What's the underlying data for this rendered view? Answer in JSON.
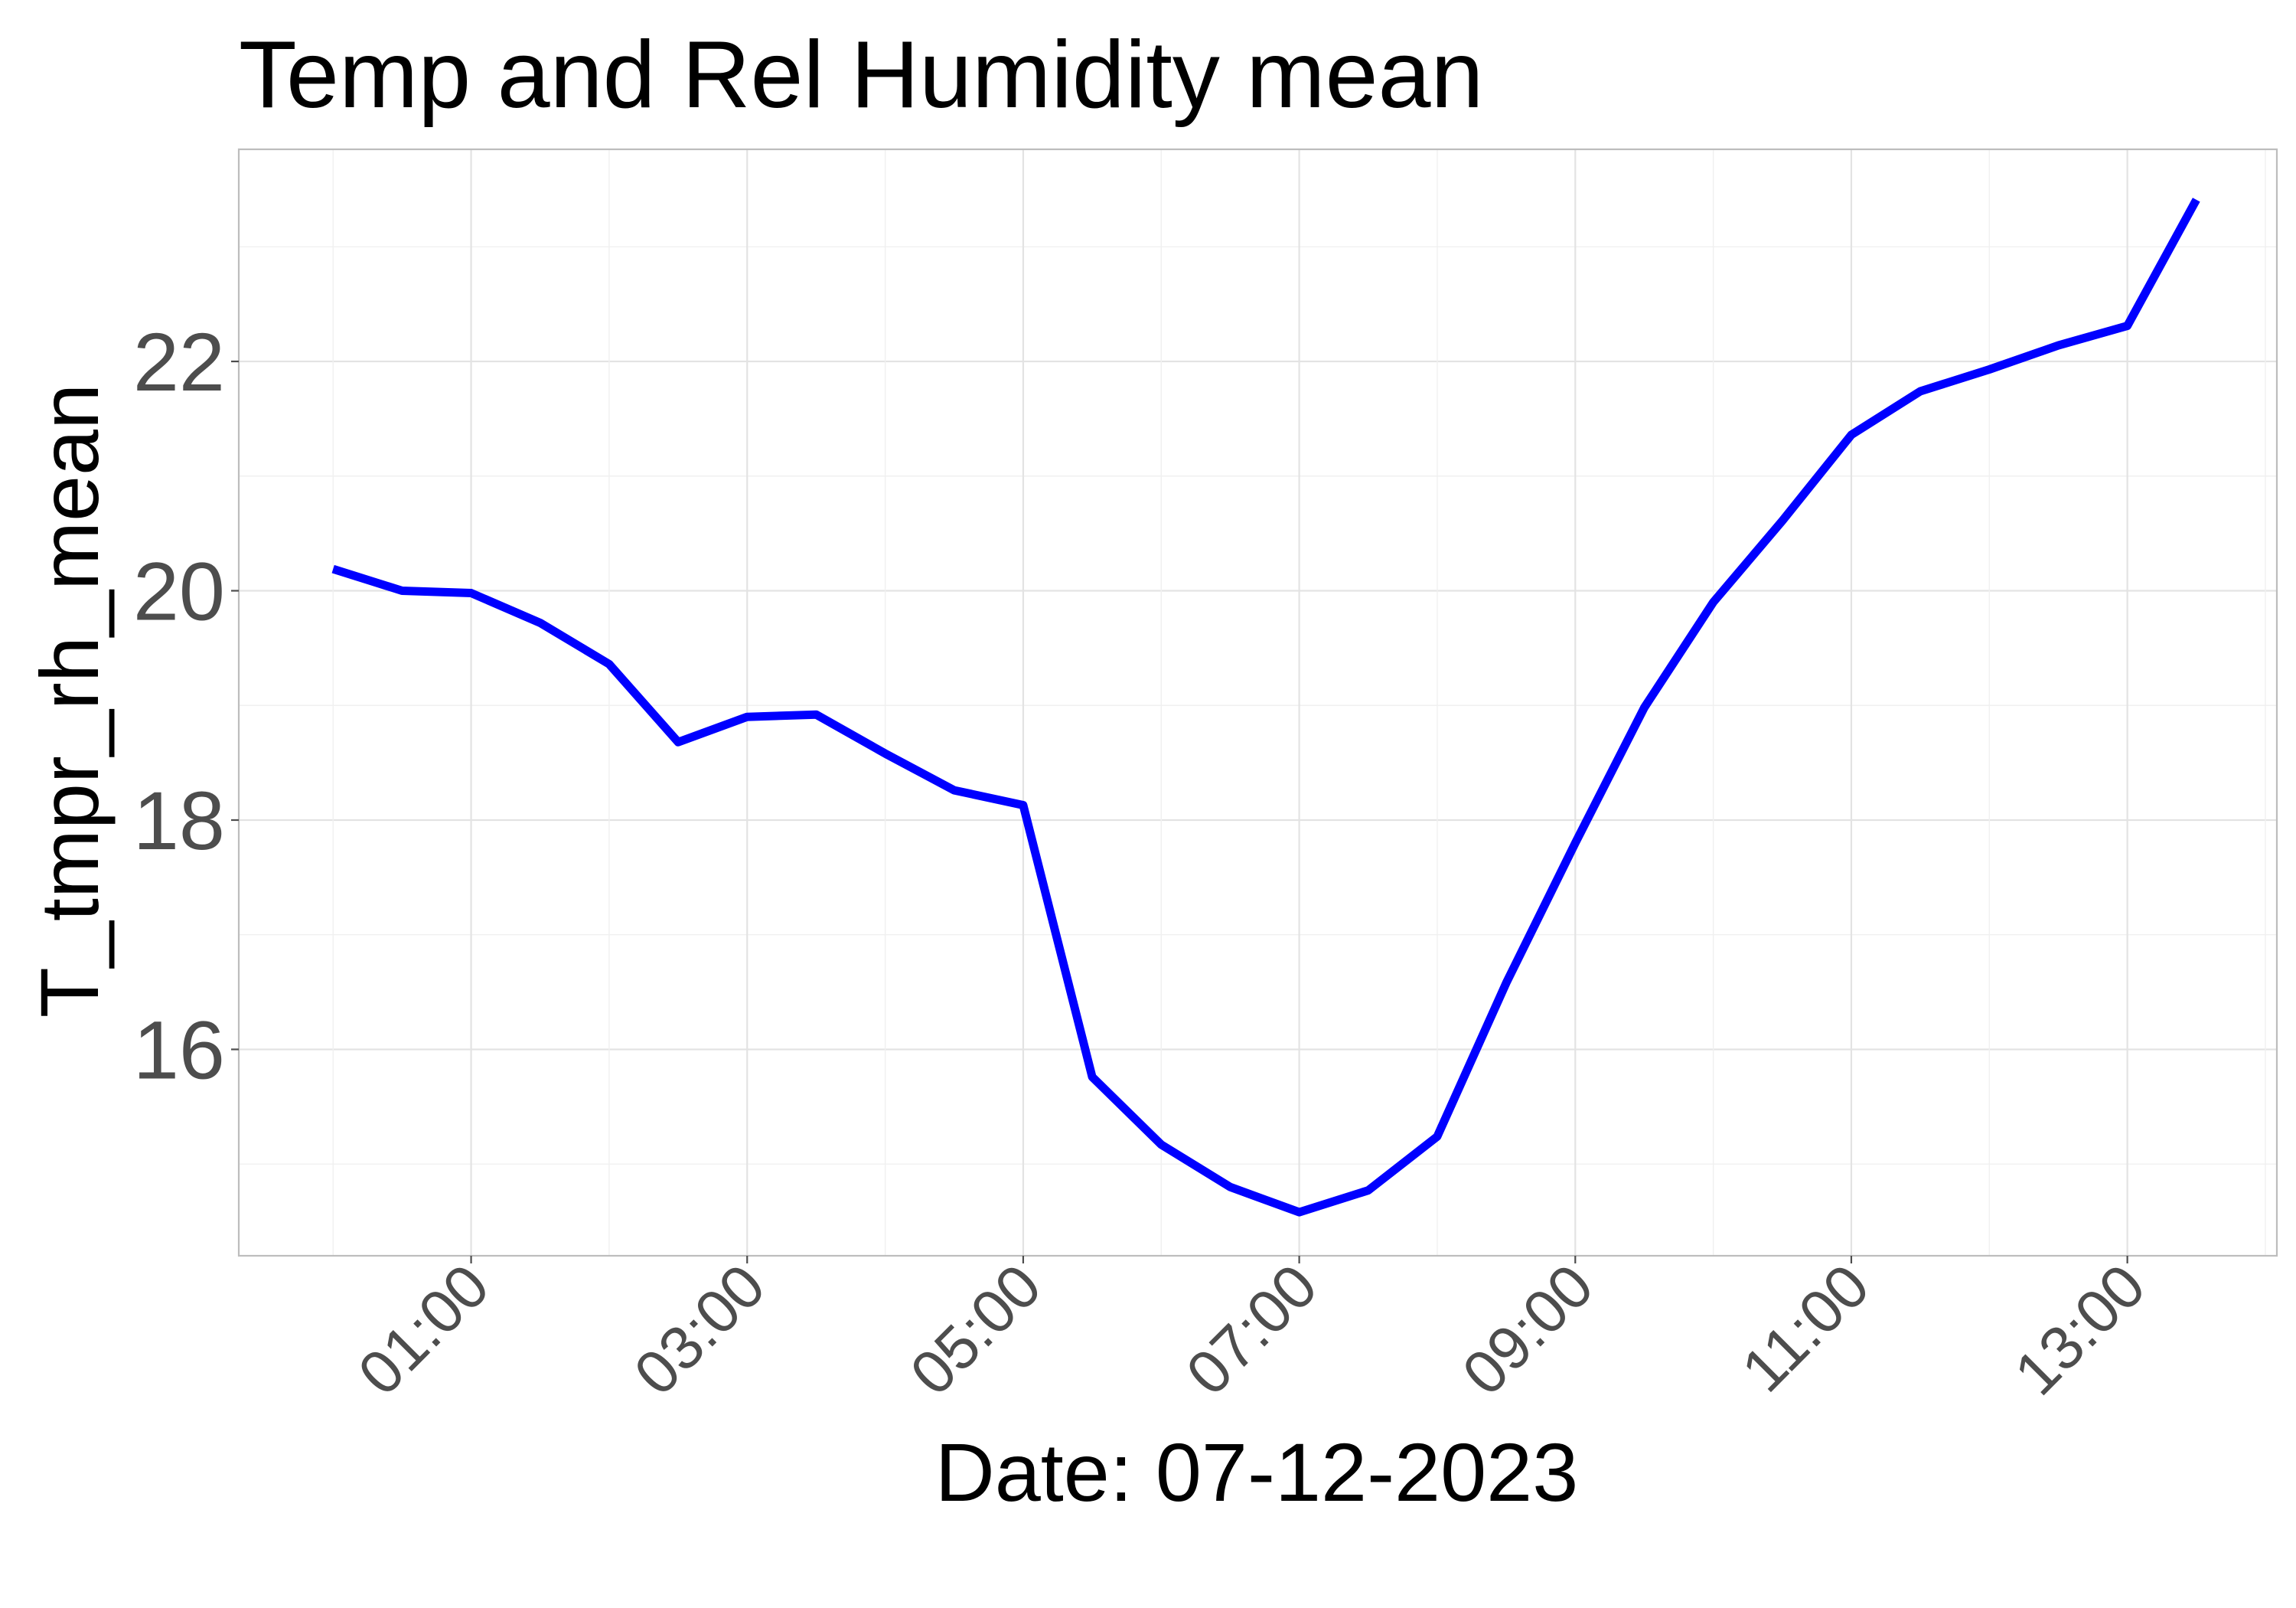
{
  "chart_data": {
    "type": "line",
    "title": "Temp and Rel Humidity mean",
    "xlabel": "Date: 07-12-2023",
    "ylabel": "T_tmpr_rh_mean",
    "x_ticks": [
      "01:00",
      "03:00",
      "05:00",
      "07:00",
      "09:00",
      "11:00",
      "13:00"
    ],
    "y_ticks": [
      16,
      18,
      20,
      22
    ],
    "xlim": [
      "2023-07-12 23:19",
      "2023-07-13 14:05"
    ],
    "ylim": [
      14.2,
      23.85
    ],
    "grid": true,
    "legend": "none",
    "series": [
      {
        "color": "#0000ff",
        "x": [
          "00:00",
          "00:30",
          "01:00",
          "01:30",
          "02:00",
          "02:30",
          "03:00",
          "03:30",
          "04:00",
          "04:30",
          "05:00",
          "05:30",
          "06:00",
          "06:30",
          "07:00",
          "07:30",
          "08:00",
          "08:30",
          "09:00",
          "09:30",
          "10:00",
          "10:30",
          "11:00",
          "11:30",
          "12:00",
          "12:30",
          "13:00",
          "13:30"
        ],
        "values": [
          20.19,
          20.0,
          19.98,
          19.72,
          19.36,
          18.68,
          18.9,
          18.92,
          18.58,
          18.26,
          18.13,
          15.76,
          15.17,
          14.8,
          14.58,
          14.77,
          15.24,
          16.58,
          17.8,
          18.98,
          19.9,
          20.61,
          21.36,
          21.74,
          21.93,
          22.14,
          22.31,
          23.41
        ]
      }
    ]
  }
}
